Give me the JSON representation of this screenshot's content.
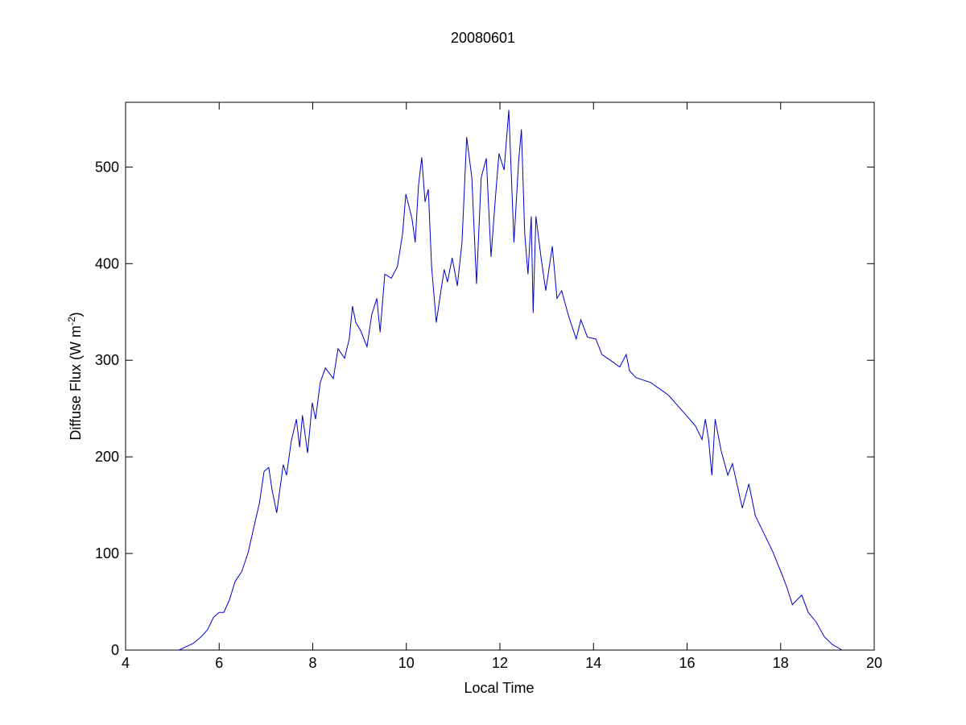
{
  "chart_data": {
    "type": "line",
    "title": "20080601",
    "xlabel": "Local Time",
    "ylabel": {
      "text": "Diffuse Flux (W m",
      "superscript": "-2",
      "tail": ")"
    },
    "xlim": [
      4,
      20
    ],
    "xticks": [
      4,
      6,
      8,
      10,
      12,
      14,
      16,
      18,
      20
    ],
    "ylim": [
      0,
      567
    ],
    "yticks": [
      0,
      100,
      200,
      300,
      400,
      500
    ],
    "grid": false,
    "series": [
      {
        "color": "#0000cc",
        "x": [
          5.14,
          5.27,
          5.45,
          5.62,
          5.75,
          5.88,
          6.0,
          6.1,
          6.22,
          6.34,
          6.48,
          6.62,
          6.75,
          6.86,
          6.96,
          7.06,
          7.13,
          7.23,
          7.37,
          7.44,
          7.54,
          7.65,
          7.72,
          7.78,
          7.89,
          7.99,
          8.06,
          8.16,
          8.27,
          8.44,
          8.54,
          8.68,
          8.78,
          8.85,
          8.92,
          9.02,
          9.16,
          9.26,
          9.37,
          9.44,
          9.54,
          9.68,
          9.81,
          9.92,
          9.99,
          10.12,
          10.19,
          10.26,
          10.33,
          10.4,
          10.47,
          10.54,
          10.64,
          10.74,
          10.81,
          10.88,
          10.98,
          11.09,
          11.19,
          11.29,
          11.4,
          11.5,
          11.6,
          11.71,
          11.81,
          11.91,
          11.98,
          12.09,
          12.19,
          12.3,
          12.4,
          12.46,
          12.53,
          12.6,
          12.67,
          12.71,
          12.77,
          12.88,
          12.98,
          13.12,
          13.22,
          13.32,
          13.46,
          13.63,
          13.73,
          13.87,
          14.05,
          14.18,
          14.39,
          14.56,
          14.7,
          14.77,
          14.91,
          15.22,
          15.6,
          15.91,
          16.18,
          16.32,
          16.39,
          16.46,
          16.53,
          16.6,
          16.73,
          16.87,
          16.97,
          17.18,
          17.32,
          17.46,
          17.63,
          17.83,
          18.04,
          18.14,
          18.25,
          18.45,
          18.59,
          18.76,
          18.93,
          19.1,
          19.31
        ],
        "values": [
          0,
          3,
          7,
          14,
          21,
          34,
          39,
          39,
          52,
          71,
          81,
          101,
          129,
          152,
          185,
          189,
          166,
          142,
          192,
          181,
          216,
          239,
          210,
          243,
          204,
          256,
          239,
          277,
          292,
          281,
          312,
          302,
          322,
          356,
          339,
          331,
          314,
          347,
          364,
          329,
          389,
          385,
          397,
          431,
          472,
          447,
          422,
          481,
          510,
          464,
          477,
          397,
          339,
          372,
          394,
          381,
          406,
          377,
          422,
          531,
          489,
          379,
          489,
          509,
          407,
          472,
          514,
          497,
          559,
          422,
          506,
          539,
          431,
          389,
          449,
          349,
          449,
          406,
          372,
          418,
          364,
          372,
          347,
          322,
          342,
          324,
          322,
          306,
          299,
          293,
          306,
          289,
          282,
          277,
          264,
          247,
          232,
          218,
          239,
          218,
          181,
          239,
          206,
          181,
          193,
          147,
          172,
          139,
          122,
          102,
          77,
          64,
          47,
          57,
          39,
          29,
          14,
          6,
          0
        ]
      }
    ]
  }
}
